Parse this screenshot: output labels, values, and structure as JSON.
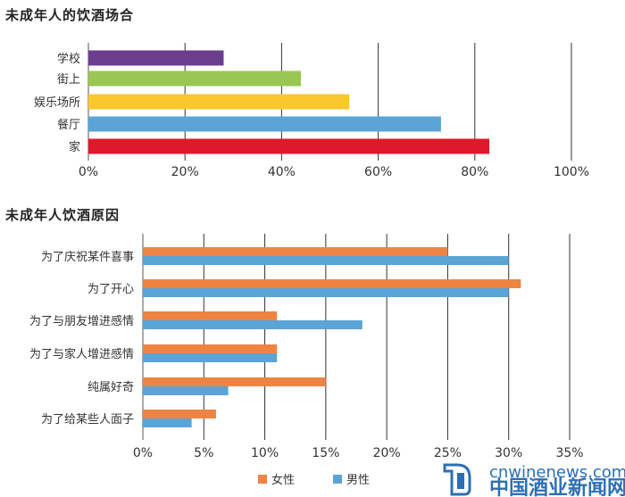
{
  "chart_data": [
    {
      "type": "bar",
      "orientation": "horizontal",
      "title": "未成年人的饮酒场合",
      "categories": [
        "学校",
        "街上",
        "娱乐场所",
        "餐厅",
        "家"
      ],
      "values": [
        28,
        44,
        54,
        73,
        83
      ],
      "colors": [
        "#6b3d8f",
        "#9ac653",
        "#fac72f",
        "#5ba4d6",
        "#e0182b"
      ],
      "xlim": [
        0,
        100
      ],
      "xticks": [
        "0%",
        "20%",
        "40%",
        "60%",
        "80%",
        "100%"
      ],
      "grid": true
    },
    {
      "type": "bar",
      "orientation": "horizontal",
      "title": "未成年人饮酒原因",
      "categories": [
        "为了庆祝某件喜事",
        "为了开心",
        "为了与朋友增进感情",
        "为了与家人增进感情",
        "纯属好奇",
        "为了给某些人面子"
      ],
      "series": [
        {
          "name": "女性",
          "color": "#ed8444",
          "values": [
            25,
            31,
            11,
            11,
            15,
            6
          ]
        },
        {
          "name": "男性",
          "color": "#5ba4d6",
          "values": [
            30,
            30,
            18,
            11,
            7,
            4
          ]
        }
      ],
      "xlim": [
        0,
        35
      ],
      "xticks": [
        "0%",
        "5%",
        "10%",
        "15%",
        "20%",
        "25%",
        "30%",
        "35%"
      ],
      "grid": true,
      "legend": "bottom"
    }
  ],
  "watermark": {
    "domain": "cnwinenews.com",
    "name": "中国酒业新闻网",
    "color": "#2d6fb4"
  }
}
